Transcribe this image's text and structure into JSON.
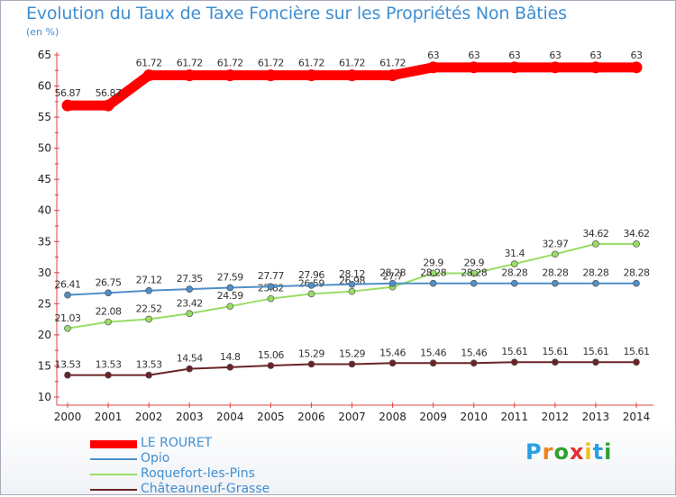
{
  "chart_data": {
    "type": "line",
    "title": "Evolution du Taux de Taxe Foncière sur les Propriétés Non Bâties",
    "ylabel": "(en %)",
    "xlabel": "",
    "ylim": [
      10,
      65
    ],
    "yticks": [
      10,
      15,
      20,
      25,
      30,
      35,
      40,
      45,
      50,
      55,
      60,
      65
    ],
    "grid": false,
    "legend_position": "bottom-left",
    "categories": [
      "2000",
      "2001",
      "2002",
      "2003",
      "2004",
      "2005",
      "2006",
      "2007",
      "2008",
      "2009",
      "2010",
      "2011",
      "2012",
      "2013",
      "2014"
    ],
    "series": [
      {
        "name": "LE ROURET",
        "color": "#ff0000",
        "values": [
          56.87,
          56.87,
          61.72,
          61.72,
          61.72,
          61.72,
          61.72,
          61.72,
          61.72,
          63,
          63,
          63,
          63,
          63,
          63
        ],
        "labels": [
          "56.87",
          "56.87",
          "61.72",
          "61.72",
          "61.72",
          "61.72",
          "61.72",
          "61.72",
          "61.72",
          "63",
          "63",
          "63",
          "63",
          "63",
          "63"
        ]
      },
      {
        "name": "Opio",
        "color": "#4f8fc8",
        "values": [
          26.41,
          26.75,
          27.12,
          27.35,
          27.59,
          27.77,
          27.96,
          28.12,
          28.28,
          28.28,
          28.28,
          28.28,
          28.28,
          28.28,
          28.28
        ],
        "labels": [
          "26.41",
          "26.75",
          "27.12",
          "27.35",
          "27.59",
          "27.77",
          "27.96",
          "28.12",
          "28.28",
          "28.28",
          "28.28",
          "28.28",
          "28.28",
          "28.28",
          "28.28"
        ]
      },
      {
        "name": "Roquefort-les-Pins",
        "color": "#99dd66",
        "values": [
          21.03,
          22.08,
          22.52,
          23.42,
          24.59,
          25.82,
          26.59,
          26.98,
          27.7,
          29.9,
          29.9,
          31.4,
          32.97,
          34.62,
          34.62
        ],
        "labels": [
          "21.03",
          "22.08",
          "22.52",
          "23.42",
          "24.59",
          "25.82",
          "26.59",
          "26.98",
          "27.7",
          "29.9",
          "29.9",
          "31.4",
          "32.97",
          "34.62",
          "34.62"
        ]
      },
      {
        "name": "Châteauneuf-Grasse",
        "color": "#6b2326",
        "values": [
          13.53,
          13.53,
          13.53,
          14.54,
          14.8,
          15.06,
          15.29,
          15.29,
          15.46,
          15.46,
          15.46,
          15.61,
          15.61,
          15.61,
          15.61
        ],
        "labels": [
          "13.53",
          "13.53",
          "13.53",
          "14.54",
          "14.8",
          "15.06",
          "15.29",
          "15.29",
          "15.46",
          "15.46",
          "15.46",
          "15.61",
          "15.61",
          "15.61",
          "15.61"
        ]
      }
    ]
  },
  "logo": {
    "letters": [
      "P",
      "r",
      "o",
      "x",
      "i",
      "t",
      "i"
    ],
    "colors": [
      "#2aa0e0",
      "#f08020",
      "#30a030",
      "#e03030",
      "#f0c010",
      "#2aa0e0",
      "#30a030"
    ]
  }
}
